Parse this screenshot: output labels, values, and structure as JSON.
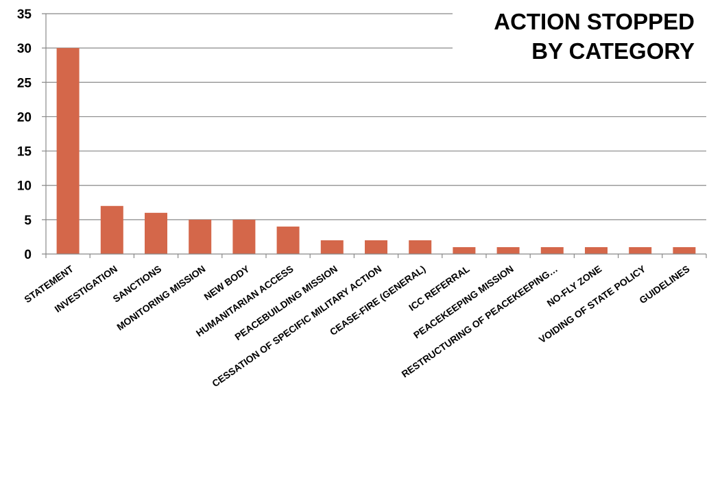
{
  "chart_data": {
    "type": "bar",
    "title_lines": [
      "ACTION STOPPED",
      "BY CATEGORY"
    ],
    "categories": [
      "STATEMENT",
      "INVESTIGATION",
      "SANCTIONS",
      "MONITORING MISSION",
      "NEW BODY",
      "HUMANITARIAN ACCESS",
      "PEACEBUILDING MISSION",
      "CESSATION OF SPECIFIC MILITARY ACTION",
      "CEASE-FIRE (GENERAL)",
      "ICC REFERRAL",
      "PEACEKEEPING MISSION",
      "RESTRUCTURING OF PEACEKEEPING…",
      "NO-FLY ZONE",
      "VOIDING OF STATE POLICY",
      "GUIDELINES"
    ],
    "values": [
      30,
      7,
      6,
      5,
      5,
      4,
      2,
      2,
      2,
      1,
      1,
      1,
      1,
      1,
      1
    ],
    "ylim": [
      0,
      35
    ],
    "yticks": [
      0,
      5,
      10,
      15,
      20,
      25,
      30,
      35
    ],
    "xlabel": "",
    "ylabel": "",
    "grid": true,
    "legend": "none",
    "colors": {
      "bar": "#d4674a",
      "grid": "#888888",
      "axis": "#888888",
      "text": "#000000"
    }
  }
}
